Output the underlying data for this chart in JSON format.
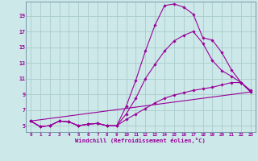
{
  "xlabel": "Windchill (Refroidissement éolien,°C)",
  "bg_color": "#cce8e8",
  "line_color": "#990099",
  "grid_color": "#aacccc",
  "spine_color": "#7799aa",
  "xlim": [
    -0.5,
    23.5
  ],
  "ylim": [
    4.2,
    20.8
  ],
  "xticks": [
    0,
    1,
    2,
    3,
    4,
    5,
    6,
    7,
    8,
    9,
    10,
    11,
    12,
    13,
    14,
    15,
    16,
    17,
    18,
    19,
    20,
    21,
    22,
    23
  ],
  "yticks": [
    5,
    7,
    9,
    11,
    13,
    15,
    17,
    19
  ],
  "series": [
    {
      "x": [
        0,
        1,
        2,
        3,
        4,
        5,
        6,
        7,
        8,
        9,
        10,
        11,
        12,
        13,
        14,
        15,
        16,
        17,
        18,
        19,
        20,
        21,
        22,
        23
      ],
      "y": [
        5.6,
        4.9,
        5.0,
        5.6,
        5.5,
        5.0,
        5.2,
        5.3,
        5.0,
        5.0,
        7.5,
        10.8,
        14.5,
        17.8,
        20.3,
        20.5,
        20.1,
        19.2,
        16.2,
        15.9,
        14.3,
        12.1,
        10.5,
        9.3
      ],
      "marker": true
    },
    {
      "x": [
        0,
        1,
        2,
        3,
        4,
        5,
        6,
        7,
        8,
        9,
        10,
        11,
        12,
        13,
        14,
        15,
        16,
        17,
        18,
        19,
        20,
        21,
        22,
        23
      ],
      "y": [
        5.6,
        4.9,
        5.0,
        5.6,
        5.5,
        5.0,
        5.2,
        5.3,
        5.0,
        5.0,
        6.5,
        8.5,
        11.0,
        12.8,
        14.5,
        15.8,
        16.5,
        17.0,
        15.5,
        13.3,
        12.0,
        11.3,
        10.5,
        9.3
      ],
      "marker": true
    },
    {
      "x": [
        0,
        1,
        2,
        3,
        4,
        5,
        6,
        7,
        8,
        9,
        10,
        11,
        12,
        13,
        14,
        15,
        16,
        17,
        18,
        19,
        20,
        21,
        22,
        23
      ],
      "y": [
        5.6,
        4.9,
        5.0,
        5.6,
        5.5,
        5.0,
        5.2,
        5.3,
        5.0,
        5.0,
        5.8,
        6.5,
        7.2,
        7.9,
        8.5,
        8.9,
        9.2,
        9.5,
        9.7,
        9.9,
        10.2,
        10.5,
        10.5,
        9.5
      ],
      "marker": true
    },
    {
      "x": [
        0,
        23
      ],
      "y": [
        5.6,
        9.3
      ],
      "marker": false
    }
  ]
}
